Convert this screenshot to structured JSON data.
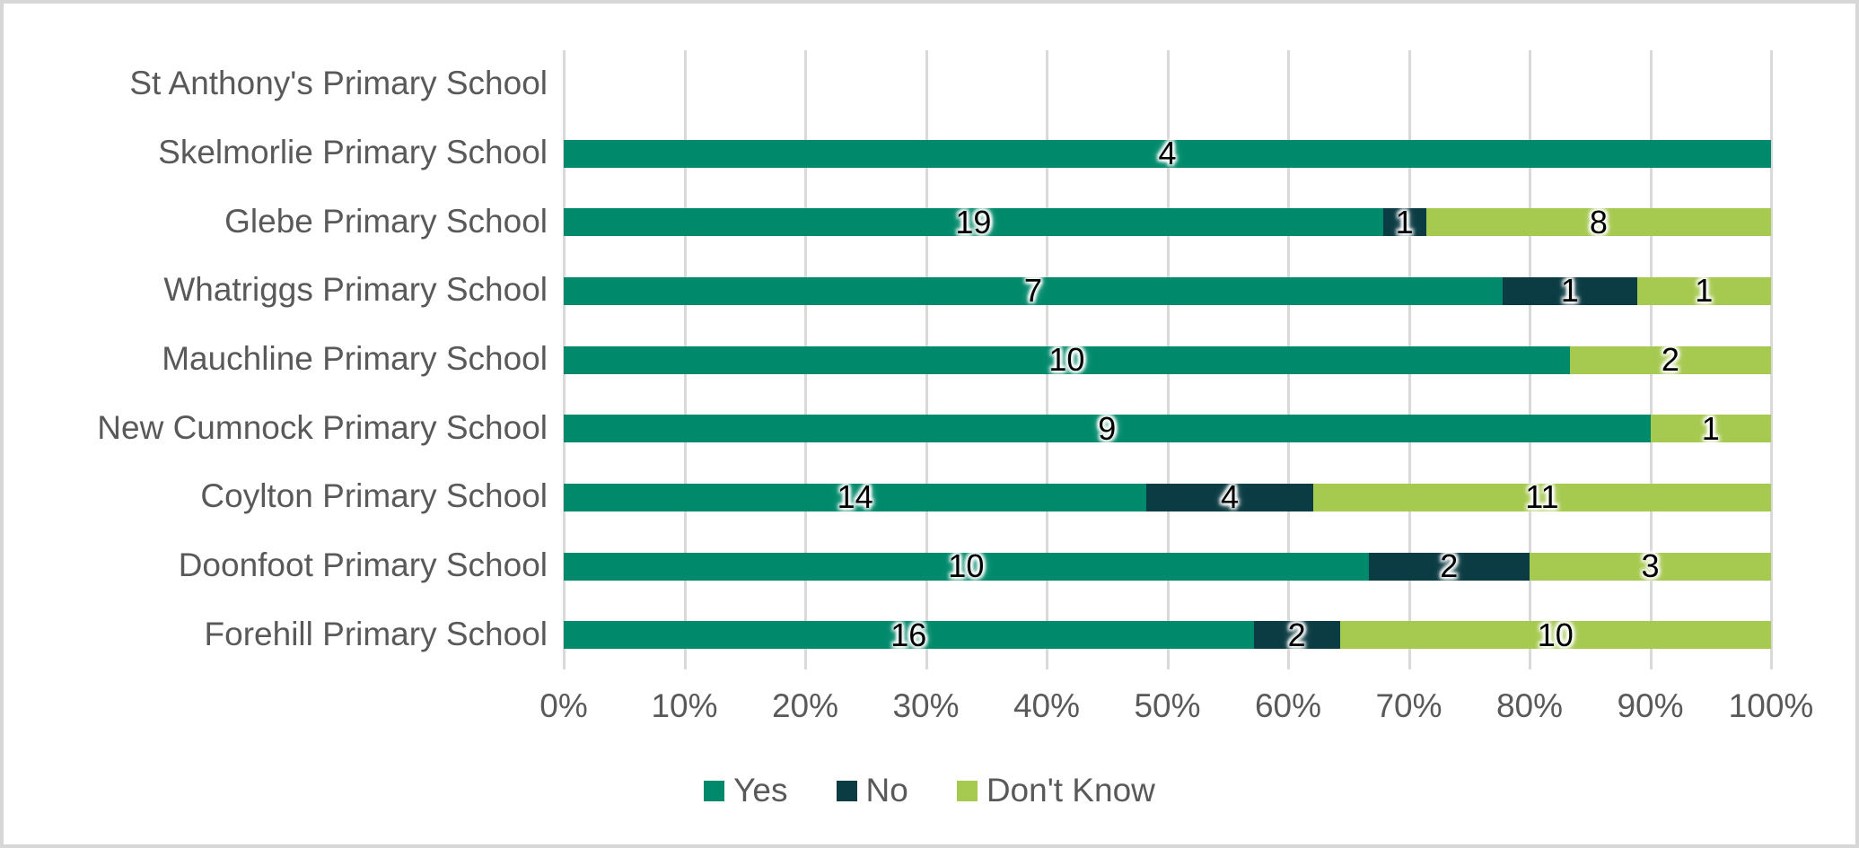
{
  "chart_data": {
    "type": "bar",
    "orientation": "horizontal",
    "stacked": true,
    "stacking": "percent",
    "title": "",
    "categories": [
      "St Anthony's Primary School",
      "Skelmorlie Primary School",
      "Glebe Primary School",
      "Whatriggs Primary School",
      "Mauchline Primary School",
      "New Cumnock Primary School",
      "Coylton Primary School",
      "Doonfoot Primary School",
      "Forehill Primary School"
    ],
    "series": [
      {
        "name": "Yes",
        "color": "#008A6B",
        "values": [
          0,
          4,
          19,
          7,
          10,
          9,
          14,
          10,
          16
        ]
      },
      {
        "name": "No",
        "color": "#0B3B43",
        "values": [
          0,
          0,
          1,
          1,
          0,
          0,
          4,
          2,
          2
        ]
      },
      {
        "name": "Don't Know",
        "color": "#A6C94F",
        "values": [
          0,
          0,
          8,
          1,
          2,
          1,
          11,
          3,
          10
        ]
      }
    ],
    "data_labels_visible": true,
    "x_axis": {
      "min": 0,
      "max": 100,
      "tick_labels": [
        "0%",
        "10%",
        "20%",
        "30%",
        "40%",
        "50%",
        "60%",
        "70%",
        "80%",
        "90%",
        "100%"
      ]
    },
    "legend": {
      "position": "bottom",
      "items": [
        "Yes",
        "No",
        "Don't Know"
      ]
    },
    "gridlines": "vertical"
  },
  "styles": {
    "text_color": "#595959",
    "data_label_color": "#000000",
    "gridline_color": "#d9d9d9",
    "background": "#ffffff",
    "frame_border_color": "#d7d7d7"
  }
}
